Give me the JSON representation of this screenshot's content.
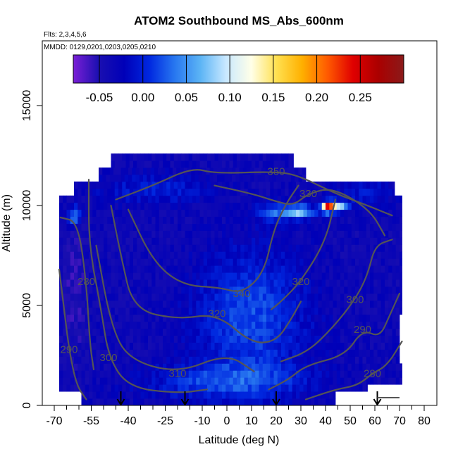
{
  "chart_data": {
    "type": "heatmap",
    "title": "ATOM2 Southbound MS_Abs_600nm",
    "flights_note": "Flts: 2,3,4,5,6",
    "dates_note": "MMDD: 0129,0201,0203,0205,0210",
    "xlabel": "Latitude (deg N)",
    "ylabel": "Altitude (m)",
    "xlim": [
      -70,
      80
    ],
    "ylim": [
      0,
      17500
    ],
    "x_ticks": [
      -70,
      -55,
      -40,
      -25,
      -10,
      0,
      10,
      20,
      30,
      40,
      50,
      60,
      70,
      80
    ],
    "x_tick_labels": [
      "-70",
      "-55",
      "-40",
      "-25",
      "-10",
      "0",
      "10",
      "20",
      "30",
      "40",
      "50",
      "60",
      "70",
      "80"
    ],
    "y_ticks": [
      0,
      5000,
      10000,
      15000
    ],
    "y_tick_labels": [
      "0",
      "5000",
      "10000",
      "15000"
    ],
    "colorbar": {
      "range": [
        -0.08,
        0.3
      ],
      "ticks": [
        -0.05,
        0,
        0.05,
        0.1,
        0.15,
        0.2,
        0.25
      ],
      "tick_labels": [
        "-0.05",
        "0.00",
        "0.05",
        "0.10",
        "0.15",
        "0.20",
        "0.25"
      ],
      "colors": [
        "#7a1fd6",
        "#1a0fb0",
        "#0000b8",
        "#0028e0",
        "#2878f0",
        "#5cb4f5",
        "#c8e8ff",
        "#ffffe8",
        "#ffe050",
        "#ffb000",
        "#ff5a00",
        "#e00000",
        "#aa0000",
        "#8a1a1a"
      ]
    },
    "contours": [
      {
        "label": "280",
        "points": [
          [
            -67.5,
            9400
          ],
          [
            -60.5,
            9200
          ],
          [
            -57,
            6200
          ],
          [
            -55.5,
            3000
          ],
          [
            -54,
            1800
          ]
        ]
      },
      {
        "label": "290",
        "points": [
          [
            -68,
            6800
          ],
          [
            -66,
            4800
          ],
          [
            -64,
            2800
          ],
          [
            -61,
            1000
          ],
          [
            -57,
            300
          ]
        ]
      },
      {
        "label": "300",
        "points": [
          [
            -56,
            11300
          ],
          [
            -56,
            8000
          ],
          [
            -51,
            4800
          ],
          [
            -48,
            2400
          ],
          [
            -40,
            900
          ],
          [
            -20,
            600
          ],
          [
            -8,
            800
          ]
        ]
      },
      {
        "label": "310",
        "points": [
          [
            -53,
            8000
          ],
          [
            -47,
            4000
          ],
          [
            -40,
            2300
          ],
          [
            -20,
            1600
          ],
          [
            0,
            2600
          ],
          [
            11,
            1700
          ]
        ]
      },
      {
        "label": "320",
        "points": [
          [
            -47,
            10000
          ],
          [
            -43,
            7500
          ],
          [
            -38,
            4800
          ],
          [
            -20,
            4300
          ],
          [
            -4,
            4600
          ],
          [
            10,
            3100
          ],
          [
            20,
            3200
          ],
          [
            26,
            4300
          ],
          [
            30,
            5200
          ]
        ]
      },
      {
        "label": "340",
        "points": [
          [
            -40,
            9800
          ],
          [
            -30,
            7200
          ],
          [
            -18,
            6000
          ],
          [
            -3,
            5900
          ],
          [
            6,
            5600
          ],
          [
            15,
            6600
          ],
          [
            19,
            8800
          ],
          [
            24,
            10100
          ],
          [
            29,
            11000
          ]
        ]
      },
      {
        "label": "350",
        "points": [
          [
            -45,
            10300
          ],
          [
            -30,
            11000
          ],
          [
            -14,
            11900
          ],
          [
            -5,
            11600
          ],
          [
            20,
            11700
          ],
          [
            29,
            11500
          ],
          [
            44,
            10600
          ],
          [
            57,
            10000
          ],
          [
            67,
            9500
          ]
        ]
      },
      {
        "label": "330",
        "points": [
          [
            -5,
            11000
          ],
          [
            10,
            10600
          ],
          [
            20,
            10200
          ],
          [
            27,
            10000
          ],
          [
            33,
            10600
          ],
          [
            43,
            10900
          ],
          [
            58,
            9800
          ],
          [
            64,
            8500
          ]
        ]
      },
      {
        "label": "320",
        "points": [
          [
            44,
            10300
          ],
          [
            40,
            8200
          ],
          [
            30,
            6200
          ],
          [
            22,
            5200
          ],
          [
            18,
            4800
          ]
        ]
      },
      {
        "label": "300",
        "points": [
          [
            22,
            2200
          ],
          [
            33,
            2700
          ],
          [
            43,
            3900
          ],
          [
            52,
            5300
          ],
          [
            57,
            6500
          ],
          [
            60,
            8000
          ],
          [
            67,
            8300
          ]
        ]
      },
      {
        "label": "290",
        "points": [
          [
            17,
            800
          ],
          [
            25,
            1300
          ],
          [
            32,
            2000
          ],
          [
            48,
            2500
          ],
          [
            55,
            3800
          ],
          [
            62,
            3400
          ],
          [
            66,
            4500
          ],
          [
            70,
            5600
          ]
        ]
      },
      {
        "label": "280",
        "points": [
          [
            32,
            300
          ],
          [
            44,
            800
          ],
          [
            53,
            1000
          ],
          [
            59,
            1600
          ],
          [
            65,
            2000
          ],
          [
            71,
            3200
          ]
        ]
      }
    ],
    "flight_markers": [
      -43,
      -17,
      20,
      61
    ],
    "flight_marker_tail": [
      61,
      70
    ]
  }
}
